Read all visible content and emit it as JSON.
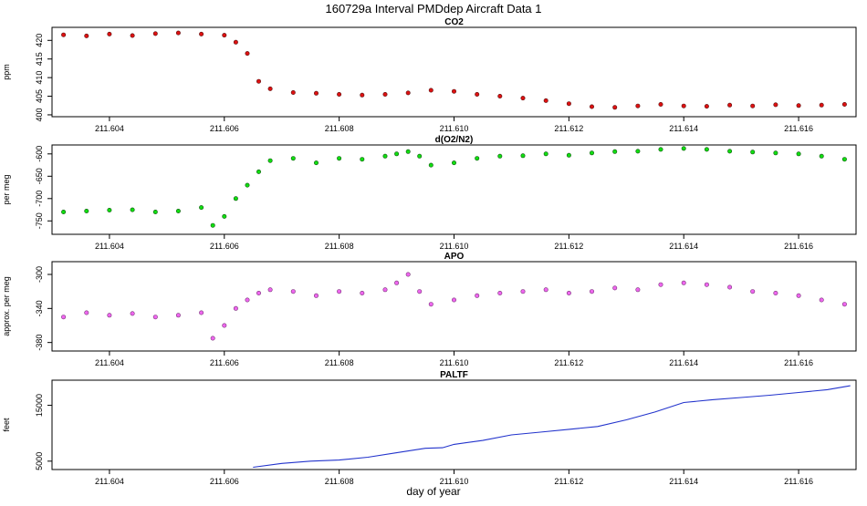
{
  "figure": {
    "title": "160729a   Interval PMDdep Aircraft Data 1",
    "xlabel": "day of year",
    "x_ticks": [
      "211.604",
      "211.606",
      "211.608",
      "211.610",
      "211.612",
      "211.614",
      "211.616"
    ]
  },
  "chart_data": [
    {
      "type": "scatter",
      "title": "CO2",
      "ylabel": "ppm",
      "xlim": [
        211.603,
        211.617
      ],
      "ylim": [
        399.5,
        423.5
      ],
      "yticks": [
        400,
        405,
        410,
        415,
        420
      ],
      "colors": {
        "point": "#dd1111",
        "outline": "#551111"
      },
      "x": [
        211.6032,
        211.6036,
        211.604,
        211.6044,
        211.6048,
        211.6052,
        211.6056,
        211.606,
        211.6062,
        211.6064,
        211.6066,
        211.6068,
        211.6072,
        211.6076,
        211.608,
        211.6084,
        211.6088,
        211.6092,
        211.6096,
        211.61,
        211.6104,
        211.6108,
        211.6112,
        211.6116,
        211.612,
        211.6124,
        211.6128,
        211.6132,
        211.6136,
        211.614,
        211.6144,
        211.6148,
        211.6152,
        211.6156,
        211.616,
        211.6164,
        211.6168
      ],
      "y": [
        421.5,
        421.2,
        421.7,
        421.3,
        421.8,
        422.0,
        421.7,
        421.4,
        419.5,
        416.5,
        409.0,
        407.0,
        406.0,
        405.8,
        405.5,
        405.3,
        405.5,
        405.9,
        406.6,
        406.3,
        405.5,
        405.0,
        404.5,
        403.8,
        403.0,
        402.2,
        402.0,
        402.4,
        402.8,
        402.4,
        402.3,
        402.6,
        402.4,
        402.7,
        402.5,
        402.6,
        402.8
      ]
    },
    {
      "type": "scatter",
      "title": "d(O2/N2)",
      "ylabel": "per meg",
      "xlim": [
        211.603,
        211.617
      ],
      "ylim": [
        -780,
        -580
      ],
      "yticks": [
        -750,
        -700,
        -650,
        -600
      ],
      "colors": {
        "point": "#11dd11",
        "outline": "#115511"
      },
      "x": [
        211.6032,
        211.6036,
        211.604,
        211.6044,
        211.6048,
        211.6052,
        211.6056,
        211.6058,
        211.606,
        211.6062,
        211.6064,
        211.6066,
        211.6068,
        211.6072,
        211.6076,
        211.608,
        211.6084,
        211.6088,
        211.609,
        211.6092,
        211.6094,
        211.6096,
        211.61,
        211.6104,
        211.6108,
        211.6112,
        211.6116,
        211.612,
        211.6124,
        211.6128,
        211.6132,
        211.6136,
        211.614,
        211.6144,
        211.6148,
        211.6152,
        211.6156,
        211.616,
        211.6164,
        211.6168
      ],
      "y": [
        -730,
        -728,
        -726,
        -725,
        -730,
        -728,
        -720,
        -760,
        -740,
        -700,
        -670,
        -640,
        -615,
        -610,
        -620,
        -610,
        -612,
        -605,
        -600,
        -595,
        -605,
        -625,
        -620,
        -610,
        -605,
        -604,
        -600,
        -603,
        -598,
        -595,
        -594,
        -590,
        -588,
        -590,
        -594,
        -596,
        -598,
        -600,
        -605,
        -612
      ]
    },
    {
      "type": "scatter",
      "title": "APO",
      "ylabel": "approx. per meg",
      "xlim": [
        211.603,
        211.617
      ],
      "ylim": [
        -390,
        -285
      ],
      "yticks": [
        -380,
        -340,
        -300
      ],
      "colors": {
        "point": "#ee66ee",
        "outline": "#773377"
      },
      "x": [
        211.6032,
        211.6036,
        211.604,
        211.6044,
        211.6048,
        211.6052,
        211.6056,
        211.6058,
        211.606,
        211.6062,
        211.6064,
        211.6066,
        211.6068,
        211.6072,
        211.6076,
        211.608,
        211.6084,
        211.6088,
        211.609,
        211.6092,
        211.6094,
        211.6096,
        211.61,
        211.6104,
        211.6108,
        211.6112,
        211.6116,
        211.612,
        211.6124,
        211.6128,
        211.6132,
        211.6136,
        211.614,
        211.6144,
        211.6148,
        211.6152,
        211.6156,
        211.616,
        211.6164,
        211.6168
      ],
      "y": [
        -350,
        -345,
        -348,
        -346,
        -350,
        -348,
        -345,
        -375,
        -360,
        -340,
        -330,
        -322,
        -318,
        -320,
        -325,
        -320,
        -322,
        -318,
        -310,
        -300,
        -320,
        -335,
        -330,
        -325,
        -322,
        -320,
        -318,
        -322,
        -320,
        -316,
        -318,
        -312,
        -310,
        -312,
        -315,
        -320,
        -322,
        -325,
        -330,
        -335
      ]
    },
    {
      "type": "line",
      "title": "PALTF",
      "ylabel": "feet",
      "xlim": [
        211.603,
        211.617
      ],
      "ylim": [
        3500,
        19500
      ],
      "yticks": [
        5000,
        15000
      ],
      "colors": {
        "line": "#2233cc"
      },
      "x": [
        211.6065,
        211.607,
        211.6075,
        211.608,
        211.6085,
        211.609,
        211.6095,
        211.6098,
        211.61,
        211.6105,
        211.611,
        211.6115,
        211.612,
        211.6125,
        211.613,
        211.6135,
        211.614,
        211.6145,
        211.615,
        211.6155,
        211.616,
        211.6165,
        211.6169
      ],
      "y": [
        3900,
        4600,
        5000,
        5200,
        5700,
        6500,
        7300,
        7400,
        8000,
        8700,
        9700,
        10200,
        10700,
        11200,
        12400,
        13800,
        15500,
        16000,
        16400,
        16800,
        17300,
        17800,
        18500
      ]
    }
  ]
}
